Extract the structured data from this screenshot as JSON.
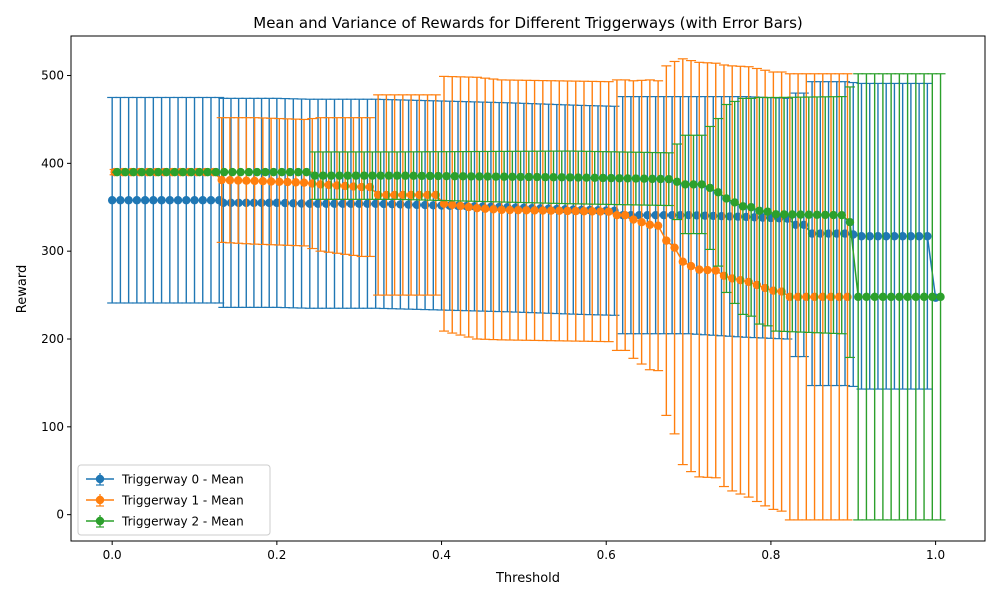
{
  "chart_data": {
    "type": "line",
    "title": "Mean and Variance of Rewards for Different Triggerways (with Error Bars)",
    "xlabel": "Threshold",
    "ylabel": "Reward",
    "xlim": [
      -0.05,
      1.06
    ],
    "ylim": [
      -30,
      545
    ],
    "xticks": [
      "0.0",
      "0.2",
      "0.4",
      "0.6",
      "0.8",
      "1.0"
    ],
    "yticks": [
      "0",
      "100",
      "200",
      "300",
      "400",
      "500"
    ],
    "grid": false,
    "legend_position": "lower-left",
    "series": [
      {
        "name": "Triggerway 0 - Mean",
        "color": "#1f77b4",
        "x_offset": 0,
        "points": [
          [
            0.0,
            358,
            117
          ],
          [
            0.13,
            358,
            117
          ],
          [
            0.135,
            355,
            119
          ],
          [
            0.2,
            355,
            119
          ],
          [
            0.24,
            354,
            119
          ],
          [
            0.31,
            354,
            119
          ],
          [
            0.32,
            354,
            119
          ],
          [
            0.4,
            352,
            119
          ],
          [
            0.48,
            350,
            119
          ],
          [
            0.57,
            347,
            119
          ],
          [
            0.61,
            346,
            119
          ],
          [
            0.62,
            341,
            135
          ],
          [
            0.7,
            341,
            135
          ],
          [
            0.77,
            339,
            137
          ],
          [
            0.82,
            337,
            137
          ],
          [
            0.83,
            330,
            150
          ],
          [
            0.84,
            330,
            150
          ],
          [
            0.85,
            320,
            173
          ],
          [
            0.89,
            320,
            173
          ],
          [
            0.9,
            319,
            173
          ],
          [
            0.91,
            317,
            174
          ],
          [
            0.99,
            317,
            174
          ],
          [
            1.0,
            247,
            0
          ]
        ]
      },
      {
        "name": "Triggerway 1 - Mean",
        "color": "#ff7f0e",
        "x_offset": 0.003,
        "points": [
          [
            0.0,
            390,
            3
          ],
          [
            0.12,
            390,
            3
          ],
          [
            0.13,
            381,
            71
          ],
          [
            0.17,
            380,
            72
          ],
          [
            0.23,
            378,
            72
          ],
          [
            0.25,
            376,
            76
          ],
          [
            0.3,
            373,
            79
          ],
          [
            0.31,
            373,
            79
          ],
          [
            0.32,
            364,
            114
          ],
          [
            0.39,
            364,
            114
          ],
          [
            0.4,
            354,
            145
          ],
          [
            0.44,
            349,
            149
          ],
          [
            0.47,
            347,
            148
          ],
          [
            0.6,
            345,
            148
          ],
          [
            0.61,
            341,
            154
          ],
          [
            0.62,
            341,
            154
          ],
          [
            0.63,
            336,
            158
          ],
          [
            0.65,
            330,
            165
          ],
          [
            0.66,
            329,
            165
          ],
          [
            0.67,
            312,
            199
          ],
          [
            0.68,
            304,
            212
          ],
          [
            0.69,
            288,
            231
          ],
          [
            0.7,
            283,
            234
          ],
          [
            0.71,
            279,
            236
          ],
          [
            0.73,
            278,
            236
          ],
          [
            0.74,
            272,
            240
          ],
          [
            0.75,
            269,
            242
          ],
          [
            0.77,
            265,
            245
          ],
          [
            0.79,
            258,
            248
          ],
          [
            0.8,
            255,
            249
          ],
          [
            0.81,
            254,
            250
          ],
          [
            0.82,
            248,
            254
          ],
          [
            0.89,
            248,
            254
          ]
        ]
      },
      {
        "name": "Triggerway 2 - Mean",
        "color": "#2ca02c",
        "x_offset": 0.006,
        "points": [
          [
            0.0,
            390,
            0
          ],
          [
            0.12,
            390,
            0
          ],
          [
            0.23,
            390,
            0
          ],
          [
            0.24,
            386,
            27
          ],
          [
            0.34,
            386,
            27
          ],
          [
            0.55,
            384,
            30
          ],
          [
            0.67,
            382,
            30
          ],
          [
            0.69,
            376,
            56
          ],
          [
            0.71,
            376,
            56
          ],
          [
            0.72,
            372,
            70
          ],
          [
            0.73,
            367,
            84
          ],
          [
            0.74,
            360,
            107
          ],
          [
            0.76,
            351,
            123
          ],
          [
            0.77,
            350,
            124
          ],
          [
            0.78,
            346,
            129
          ],
          [
            0.79,
            345,
            130
          ],
          [
            0.8,
            342,
            133
          ],
          [
            0.88,
            341,
            135
          ],
          [
            0.89,
            333,
            154
          ],
          [
            0.9,
            248,
            254
          ],
          [
            1.0,
            248,
            254
          ]
        ]
      }
    ]
  }
}
